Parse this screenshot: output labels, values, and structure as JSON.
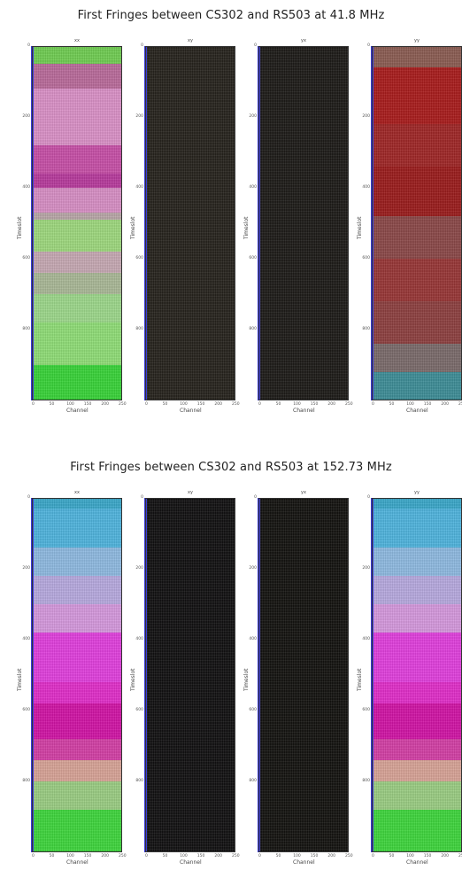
{
  "chart_data": [
    {
      "type": "heatmap",
      "title": "First Fringes between CS302 and RS503 at 41.8 MHz",
      "panels": [
        {
          "title": "xx",
          "bands": [
            {
              "from": 0,
              "to": 0.05,
              "color": "#6fcc52"
            },
            {
              "from": 0.05,
              "to": 0.12,
              "color": "#b86a9a"
            },
            {
              "from": 0.12,
              "to": 0.28,
              "color": "#d990c6"
            },
            {
              "from": 0.28,
              "to": 0.36,
              "color": "#c64fa6"
            },
            {
              "from": 0.36,
              "to": 0.4,
              "color": "#b63a9c"
            },
            {
              "from": 0.4,
              "to": 0.47,
              "color": "#d68ec4"
            },
            {
              "from": 0.47,
              "to": 0.49,
              "color": "#b7a5a6"
            },
            {
              "from": 0.49,
              "to": 0.58,
              "color": "#9dd77d"
            },
            {
              "from": 0.58,
              "to": 0.64,
              "color": "#c5a8b2"
            },
            {
              "from": 0.64,
              "to": 0.7,
              "color": "#a9b796"
            },
            {
              "from": 0.7,
              "to": 0.78,
              "color": "#9cd68a"
            },
            {
              "from": 0.78,
              "to": 0.9,
              "color": "#8fdc76"
            },
            {
              "from": 0.9,
              "to": 1.0,
              "color": "#38d238"
            }
          ]
        },
        {
          "title": "xy",
          "bands": [
            {
              "from": 0,
              "to": 1,
              "color": "#26231d"
            }
          ]
        },
        {
          "title": "yx",
          "bands": [
            {
              "from": 0,
              "to": 1,
              "color": "#1d1b18"
            }
          ]
        },
        {
          "title": "yy",
          "bands": [
            {
              "from": 0,
              "to": 0.06,
              "color": "#8a5c52"
            },
            {
              "from": 0.06,
              "to": 0.22,
              "color": "#a81c1c"
            },
            {
              "from": 0.22,
              "to": 0.34,
              "color": "#9e2626"
            },
            {
              "from": 0.34,
              "to": 0.48,
              "color": "#9a1c1c"
            },
            {
              "from": 0.48,
              "to": 0.6,
              "color": "#8a4848"
            },
            {
              "from": 0.6,
              "to": 0.72,
              "color": "#973636"
            },
            {
              "from": 0.72,
              "to": 0.84,
              "color": "#8c4040"
            },
            {
              "from": 0.84,
              "to": 0.92,
              "color": "#7a6a6a"
            },
            {
              "from": 0.92,
              "to": 1.0,
              "color": "#3d8c96"
            }
          ]
        }
      ],
      "ylabel": "Timeslot",
      "xlabel": "Channel",
      "yticks": [
        "0",
        "200",
        "400",
        "600",
        "800"
      ],
      "ytick_values": [
        0,
        200,
        400,
        600,
        800
      ],
      "ylim": [
        0,
        1000
      ],
      "xticks": [
        "0",
        "50",
        "100",
        "150",
        "200",
        "250"
      ],
      "xlim": [
        0,
        256
      ]
    },
    {
      "type": "heatmap",
      "title": "First Fringes between CS302 and RS503 at 152.73 MHz",
      "panels": [
        {
          "title": "xx",
          "bands": [
            {
              "from": 0,
              "to": 0.03,
              "color": "#3aa7c8"
            },
            {
              "from": 0.03,
              "to": 0.14,
              "color": "#4fb3dc"
            },
            {
              "from": 0.14,
              "to": 0.22,
              "color": "#8eb9e0"
            },
            {
              "from": 0.22,
              "to": 0.3,
              "color": "#b6a9de"
            },
            {
              "from": 0.3,
              "to": 0.38,
              "color": "#d498dc"
            },
            {
              "from": 0.38,
              "to": 0.52,
              "color": "#e040dc"
            },
            {
              "from": 0.52,
              "to": 0.58,
              "color": "#e02ec8"
            },
            {
              "from": 0.58,
              "to": 0.68,
              "color": "#d014a4"
            },
            {
              "from": 0.68,
              "to": 0.74,
              "color": "#d23fa4"
            },
            {
              "from": 0.74,
              "to": 0.8,
              "color": "#d6a296"
            },
            {
              "from": 0.8,
              "to": 0.88,
              "color": "#9acc82"
            },
            {
              "from": 0.88,
              "to": 1.0,
              "color": "#3ed43c"
            }
          ]
        },
        {
          "title": "xy",
          "bands": [
            {
              "from": 0,
              "to": 1,
              "color": "#121112"
            }
          ]
        },
        {
          "title": "yx",
          "bands": [
            {
              "from": 0,
              "to": 1,
              "color": "#141310"
            }
          ]
        },
        {
          "title": "yy",
          "bands": [
            {
              "from": 0,
              "to": 0.03,
              "color": "#3aa7c8"
            },
            {
              "from": 0.03,
              "to": 0.14,
              "color": "#4fb3dc"
            },
            {
              "from": 0.14,
              "to": 0.22,
              "color": "#8eb9e0"
            },
            {
              "from": 0.22,
              "to": 0.3,
              "color": "#b6a9de"
            },
            {
              "from": 0.3,
              "to": 0.38,
              "color": "#d498dc"
            },
            {
              "from": 0.38,
              "to": 0.52,
              "color": "#e040dc"
            },
            {
              "from": 0.52,
              "to": 0.58,
              "color": "#e02ec8"
            },
            {
              "from": 0.58,
              "to": 0.68,
              "color": "#d014a4"
            },
            {
              "from": 0.68,
              "to": 0.74,
              "color": "#d23fa4"
            },
            {
              "from": 0.74,
              "to": 0.8,
              "color": "#d6a296"
            },
            {
              "from": 0.8,
              "to": 0.88,
              "color": "#9acc82"
            },
            {
              "from": 0.88,
              "to": 1.0,
              "color": "#3ed43c"
            }
          ]
        }
      ],
      "ylabel": "Timeslot",
      "xlabel": "Channel",
      "yticks": [
        "0",
        "200",
        "400",
        "600",
        "800"
      ],
      "ytick_values": [
        0,
        200,
        400,
        600,
        800
      ],
      "ylim": [
        0,
        1000
      ],
      "xticks": [
        "0",
        "50",
        "100",
        "150",
        "200",
        "250"
      ],
      "xlim": [
        0,
        256
      ]
    }
  ]
}
